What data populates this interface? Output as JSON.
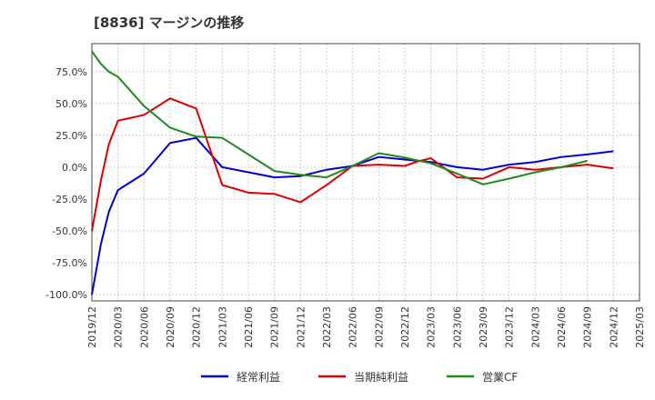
{
  "chart_data": {
    "type": "line",
    "title": "[8836]  マージンの推移",
    "xlabel": "",
    "ylabel": "",
    "x": [
      "2019/12",
      "2020/03",
      "2020/06",
      "2020/09",
      "2020/12",
      "2021/03",
      "2021/06",
      "2021/09",
      "2021/12",
      "2022/03",
      "2022/06",
      "2022/09",
      "2022/12",
      "2023/03",
      "2023/06",
      "2023/09",
      "2023/12",
      "2024/03",
      "2024/06",
      "2024/09",
      "2024/12",
      "2025/03"
    ],
    "ylim": [
      -105,
      97
    ],
    "yticks": [
      75,
      50,
      25,
      0,
      -25,
      -50,
      -75,
      -100
    ],
    "ytick_labels": [
      "75.0%",
      "50.0%",
      "25.0%",
      "0.0%",
      "-25.0%",
      "-50.0%",
      "-75.0%",
      "-100.0%"
    ],
    "grid": true,
    "legend_position": "bottom",
    "series": [
      {
        "name": "経常利益",
        "color": "#0000cc",
        "points": [
          [
            0,
            -100
          ],
          [
            0.35,
            -60
          ],
          [
            0.65,
            -35
          ],
          [
            1,
            -18
          ],
          [
            2,
            -5
          ],
          [
            3,
            19
          ],
          [
            4,
            23
          ],
          [
            5,
            0
          ],
          [
            6,
            -4
          ],
          [
            7,
            -8
          ],
          [
            8,
            -7
          ],
          [
            9,
            -2
          ],
          [
            10,
            1
          ],
          [
            11,
            8
          ],
          [
            12,
            6
          ],
          [
            13,
            4
          ],
          [
            14,
            0
          ],
          [
            15,
            -2
          ],
          [
            16,
            2
          ],
          [
            17,
            4
          ],
          [
            18,
            8
          ],
          [
            19,
            10
          ],
          [
            20,
            12.5
          ]
        ]
      },
      {
        "name": "当期純利益",
        "color": "#dd0000",
        "points": [
          [
            0,
            -50
          ],
          [
            0.35,
            -10
          ],
          [
            0.65,
            18
          ],
          [
            1,
            36.5
          ],
          [
            2,
            41
          ],
          [
            3,
            54
          ],
          [
            4,
            46
          ],
          [
            5,
            -14
          ],
          [
            6,
            -20
          ],
          [
            7,
            -21
          ],
          [
            8,
            -27.5
          ],
          [
            9,
            -14
          ],
          [
            10,
            1
          ],
          [
            11,
            2
          ],
          [
            12,
            1
          ],
          [
            12.5,
            4.5
          ],
          [
            13,
            7
          ],
          [
            14,
            -8
          ],
          [
            15,
            -9
          ],
          [
            16,
            0
          ],
          [
            17,
            -2
          ],
          [
            18,
            0
          ],
          [
            19,
            2
          ],
          [
            20,
            -1
          ]
        ]
      },
      {
        "name": "営業CF",
        "color": "#228822",
        "points": [
          [
            0,
            91
          ],
          [
            0.35,
            81
          ],
          [
            0.65,
            75
          ],
          [
            1,
            71
          ],
          [
            2,
            48
          ],
          [
            3,
            31
          ],
          [
            4,
            24
          ],
          [
            5,
            23
          ],
          [
            6,
            10
          ],
          [
            7,
            -3
          ],
          [
            8,
            -6
          ],
          [
            9,
            -8
          ],
          [
            10,
            1
          ],
          [
            11,
            11
          ],
          [
            12,
            7.5
          ],
          [
            13,
            3
          ],
          [
            14,
            -5
          ],
          [
            15,
            -13.5
          ],
          [
            16,
            -9
          ],
          [
            17,
            -4
          ],
          [
            18,
            0
          ],
          [
            19,
            5
          ]
        ]
      }
    ]
  }
}
